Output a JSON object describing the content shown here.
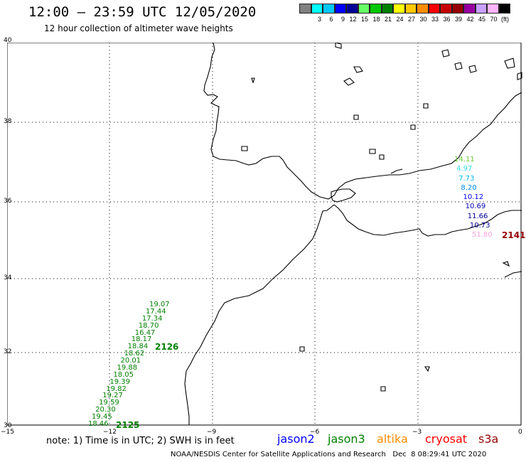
{
  "header": {
    "title": "12:00 – 23:59 UTC 12/05/2020",
    "subtitle": "12 hour collection of altimeter wave heights"
  },
  "color_scale": {
    "unit": "(ft)",
    "bins": [
      {
        "color": "#808080",
        "label": ""
      },
      {
        "color": "#00ffff",
        "label": "3"
      },
      {
        "color": "#00c8ff",
        "label": "6"
      },
      {
        "color": "#0000ff",
        "label": "9"
      },
      {
        "color": "#000096",
        "label": "12"
      },
      {
        "color": "#66ff66",
        "label": "15"
      },
      {
        "color": "#00c800",
        "label": "18"
      },
      {
        "color": "#008000",
        "label": "21"
      },
      {
        "color": "#ffff00",
        "label": "24"
      },
      {
        "color": "#ffc800",
        "label": "27"
      },
      {
        "color": "#ff8c00",
        "label": "30"
      },
      {
        "color": "#ff0000",
        "label": "33"
      },
      {
        "color": "#c80000",
        "label": "36"
      },
      {
        "color": "#960000",
        "label": "39"
      },
      {
        "color": "#9600a0",
        "label": "42"
      },
      {
        "color": "#c8a0ff",
        "label": "45"
      },
      {
        "color": "#ffb4ff",
        "label": "70"
      },
      {
        "color": "#000000",
        "label": "(ft)"
      }
    ]
  },
  "axes": {
    "lat_labels": [
      "40",
      "38",
      "36",
      "34",
      "32",
      "30"
    ],
    "lon_labels": [
      "−15",
      "−12",
      "−9",
      "−6",
      "−3",
      "0"
    ]
  },
  "tracks": {
    "jason3_track": {
      "time_labels": [
        "2126",
        "2125"
      ],
      "values": [
        "19.07",
        "17.44",
        "17.34",
        "18.70",
        "16.47",
        "18.17",
        "18.84",
        "18.62",
        "20.01",
        "19.88",
        "18.05",
        "19.39",
        "19.82",
        "19.27",
        "19.59",
        "20.30",
        "19.45",
        "18.46"
      ],
      "color": "#008000"
    },
    "east_track": {
      "time_label": "2141",
      "values": [
        {
          "v": "14.11",
          "color": "#66cc33"
        },
        {
          "v": "4.97",
          "color": "#33dddd"
        },
        {
          "v": "7.73",
          "color": "#00bbee"
        },
        {
          "v": "8.20",
          "color": "#0088ee"
        },
        {
          "v": "10.12",
          "color": "#0000ff"
        },
        {
          "v": "10.69",
          "color": "#0000aa"
        },
        {
          "v": "11.66",
          "color": "#000096"
        },
        {
          "v": "10.73",
          "color": "#000096"
        },
        {
          "v": "51.80",
          "color": "#ffa0e0"
        }
      ],
      "label_color": "#960000"
    }
  },
  "footer": {
    "note": "note: 1) Time is in UTC; 2) SWH is in feet",
    "satellites": [
      {
        "name": "jason2",
        "color": "#0000ff"
      },
      {
        "name": "jason3",
        "color": "#008000"
      },
      {
        "name": "altika",
        "color": "#ff8c00"
      },
      {
        "name": "cryosat",
        "color": "#ff0000"
      },
      {
        "name": "s3a",
        "color": "#960000"
      }
    ],
    "credit": "NOAA/NESDIS Center for Satellite Applications and Research   Dec  8 08:29:41 UTC 2020"
  }
}
